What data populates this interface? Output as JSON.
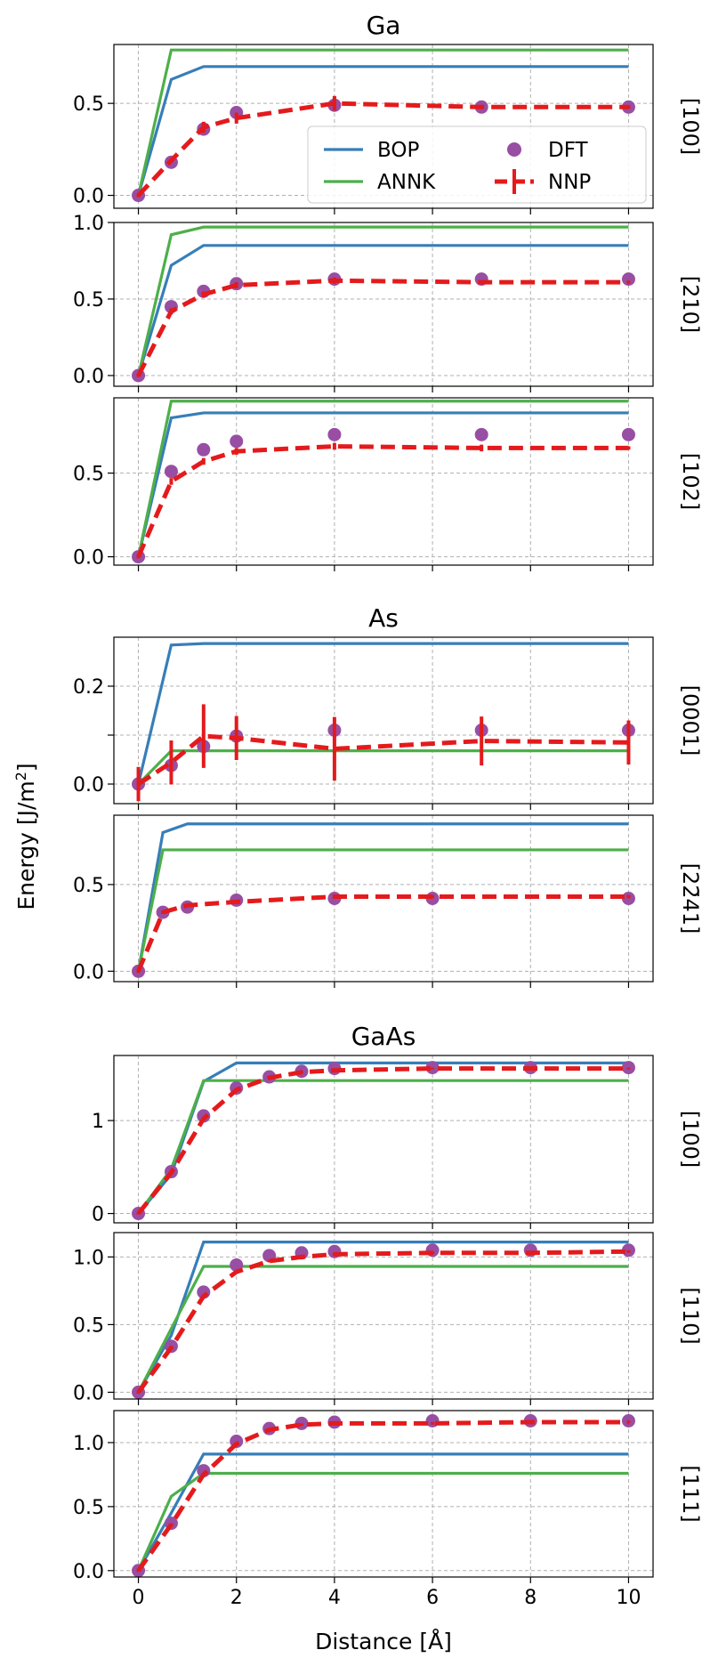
{
  "colors": {
    "BOP": "#377eb8",
    "ANNK": "#4daf4a",
    "DFT": "#984ea3",
    "NNP": "#e41a1c"
  },
  "ylabel": "Energy [J/m",
  "ylabel_sup": "2",
  "ylabel_end": "]",
  "xlabel": "Distance [Å]",
  "chart_data": [
    {
      "type": "line",
      "group_title": "Ga",
      "direction": "[100]",
      "xlim": [
        -0.5,
        10.5
      ],
      "ylim": [
        -0.07,
        0.82
      ],
      "yticks": [
        0.0,
        0.5
      ],
      "ytick_labels": [
        "0.0",
        "0.5"
      ],
      "legend": {
        "placement": "lower-right",
        "entries": [
          "BOP",
          "ANNK",
          "DFT",
          "NNP"
        ]
      },
      "series": [
        {
          "name": "BOP",
          "x": [
            0,
            0.67,
            1.33,
            10
          ],
          "y": [
            0.0,
            0.63,
            0.7,
            0.7
          ]
        },
        {
          "name": "ANNK",
          "x": [
            0,
            0.67,
            10
          ],
          "y": [
            0.0,
            0.79,
            0.79
          ]
        },
        {
          "name": "DFT",
          "x": [
            0,
            0.67,
            1.33,
            2,
            4,
            7,
            10
          ],
          "y": [
            0.0,
            0.18,
            0.36,
            0.45,
            0.49,
            0.48,
            0.48
          ]
        },
        {
          "name": "NNP",
          "x": [
            0,
            0.67,
            1.33,
            2,
            4,
            7,
            10
          ],
          "y": [
            0.0,
            0.19,
            0.37,
            0.42,
            0.5,
            0.48,
            0.48
          ],
          "err": [
            0.01,
            0.01,
            0.03,
            0.03,
            0.04,
            0.01,
            0.01
          ]
        }
      ]
    },
    {
      "type": "line",
      "group_title": "",
      "direction": "[210]",
      "xlim": [
        -0.5,
        10.5
      ],
      "ylim": [
        -0.07,
        1.0
      ],
      "yticks": [
        0.0,
        0.5,
        1.0
      ],
      "ytick_labels": [
        "0.0",
        "0.5",
        "1.0"
      ],
      "series": [
        {
          "name": "BOP",
          "x": [
            0,
            0.67,
            1.33,
            10
          ],
          "y": [
            0.0,
            0.72,
            0.85,
            0.85
          ]
        },
        {
          "name": "ANNK",
          "x": [
            0,
            0.67,
            1.33,
            10
          ],
          "y": [
            0.0,
            0.92,
            0.97,
            0.97
          ]
        },
        {
          "name": "DFT",
          "x": [
            0,
            0.67,
            1.33,
            2,
            4,
            7,
            10
          ],
          "y": [
            0.0,
            0.45,
            0.55,
            0.6,
            0.63,
            0.63,
            0.63
          ]
        },
        {
          "name": "NNP",
          "x": [
            0,
            0.67,
            1.33,
            2,
            4,
            7,
            10
          ],
          "y": [
            0.0,
            0.42,
            0.53,
            0.59,
            0.62,
            0.61,
            0.61
          ],
          "err": [
            0.01,
            0.02,
            0.02,
            0.02,
            0.02,
            0.01,
            0.01
          ]
        }
      ]
    },
    {
      "type": "line",
      "group_title": "",
      "direction": "[102]",
      "xlim": [
        -0.5,
        10.5
      ],
      "ylim": [
        -0.05,
        0.95
      ],
      "yticks": [
        0.0,
        0.5
      ],
      "ytick_labels": [
        "0.0",
        "0.5"
      ],
      "series": [
        {
          "name": "BOP",
          "x": [
            0,
            0.67,
            1.33,
            10
          ],
          "y": [
            0.0,
            0.83,
            0.86,
            0.86
          ]
        },
        {
          "name": "ANNK",
          "x": [
            0,
            0.67,
            10
          ],
          "y": [
            0.0,
            0.93,
            0.93
          ]
        },
        {
          "name": "DFT",
          "x": [
            0,
            0.67,
            1.33,
            2,
            4,
            7,
            10
          ],
          "y": [
            0.0,
            0.51,
            0.64,
            0.69,
            0.73,
            0.73,
            0.73
          ]
        },
        {
          "name": "NNP",
          "x": [
            0,
            0.67,
            1.33,
            2,
            4,
            7,
            10
          ],
          "y": [
            0.0,
            0.45,
            0.57,
            0.63,
            0.66,
            0.65,
            0.65
          ],
          "err": [
            0.01,
            0.02,
            0.02,
            0.02,
            0.02,
            0.02,
            0.01
          ]
        }
      ]
    },
    {
      "type": "line",
      "group_title": "As",
      "direction": "[0001]",
      "xlim": [
        -0.5,
        10.5
      ],
      "ylim": [
        -0.04,
        0.3
      ],
      "yticks": [
        0.0,
        0.1,
        0.2
      ],
      "ytick_labels": [
        "0.0",
        "",
        "0.2"
      ],
      "series": [
        {
          "name": "BOP",
          "x": [
            0,
            0.67,
            1.33,
            10
          ],
          "y": [
            0.0,
            0.284,
            0.287,
            0.287
          ]
        },
        {
          "name": "ANNK",
          "x": [
            0,
            0.67,
            10
          ],
          "y": [
            0.0,
            0.068,
            0.068
          ]
        },
        {
          "name": "DFT",
          "x": [
            0,
            0.67,
            1.33,
            2,
            4,
            7,
            10
          ],
          "y": [
            0.0,
            0.038,
            0.077,
            0.098,
            0.11,
            0.11,
            0.11
          ]
        },
        {
          "name": "NNP",
          "x": [
            0,
            0.67,
            1.33,
            2,
            4,
            7,
            10
          ],
          "y": [
            0.0,
            0.044,
            0.098,
            0.094,
            0.072,
            0.088,
            0.085
          ],
          "err": [
            0.035,
            0.045,
            0.065,
            0.045,
            0.065,
            0.05,
            0.045
          ]
        }
      ]
    },
    {
      "type": "line",
      "group_title": "",
      "direction": "[22̄41]",
      "xlim": [
        -0.5,
        10.5
      ],
      "ylim": [
        -0.06,
        0.9
      ],
      "yticks": [
        0.0,
        0.5
      ],
      "ytick_labels": [
        "0.0",
        "0.5"
      ],
      "series": [
        {
          "name": "BOP",
          "x": [
            0,
            0.5,
            1,
            10
          ],
          "y": [
            0.0,
            0.8,
            0.85,
            0.85
          ]
        },
        {
          "name": "ANNK",
          "x": [
            0,
            0.5,
            10
          ],
          "y": [
            0.0,
            0.7,
            0.7
          ]
        },
        {
          "name": "DFT",
          "x": [
            0,
            0.5,
            1,
            2,
            4,
            6,
            10
          ],
          "y": [
            0.0,
            0.34,
            0.37,
            0.41,
            0.42,
            0.42,
            0.42
          ]
        },
        {
          "name": "NNP",
          "x": [
            0,
            0.5,
            1,
            2,
            4,
            6,
            10
          ],
          "y": [
            0.0,
            0.34,
            0.38,
            0.4,
            0.43,
            0.43,
            0.43
          ],
          "err": [
            0.01,
            0.01,
            0.01,
            0.01,
            0.01,
            0.01,
            0.01
          ]
        }
      ]
    },
    {
      "type": "line",
      "group_title": "GaAs",
      "direction": "[100]",
      "xlim": [
        -0.5,
        10.5
      ],
      "ylim": [
        -0.1,
        1.7
      ],
      "yticks": [
        0,
        1
      ],
      "ytick_labels": [
        "0",
        "1"
      ],
      "series": [
        {
          "name": "BOP",
          "x": [
            0,
            0.67,
            1.33,
            2,
            10
          ],
          "y": [
            0.0,
            0.42,
            1.42,
            1.62,
            1.62
          ]
        },
        {
          "name": "ANNK",
          "x": [
            0,
            0.67,
            1.33,
            10
          ],
          "y": [
            0.0,
            0.48,
            1.43,
            1.43
          ]
        },
        {
          "name": "DFT",
          "x": [
            0,
            0.67,
            1.33,
            2,
            2.67,
            3.33,
            4,
            6,
            8,
            10
          ],
          "y": [
            0.0,
            0.45,
            1.05,
            1.35,
            1.47,
            1.53,
            1.56,
            1.57,
            1.57,
            1.57
          ]
        },
        {
          "name": "NNP",
          "x": [
            0,
            0.67,
            1.33,
            2,
            2.67,
            3.33,
            4,
            6,
            8,
            10
          ],
          "y": [
            0.0,
            0.44,
            1.02,
            1.33,
            1.46,
            1.52,
            1.54,
            1.56,
            1.56,
            1.56
          ],
          "err": [
            0.01,
            0.01,
            0.01,
            0.01,
            0.01,
            0.01,
            0.01,
            0.01,
            0.01,
            0.01
          ]
        }
      ]
    },
    {
      "type": "line",
      "group_title": "",
      "direction": "[110]",
      "xlim": [
        -0.5,
        10.5
      ],
      "ylim": [
        -0.05,
        1.18
      ],
      "yticks": [
        0.0,
        0.5,
        1.0
      ],
      "ytick_labels": [
        "0.0",
        "0.5",
        "1.0"
      ],
      "series": [
        {
          "name": "BOP",
          "x": [
            0,
            0.67,
            1.33,
            10
          ],
          "y": [
            0.0,
            0.42,
            1.11,
            1.11
          ]
        },
        {
          "name": "ANNK",
          "x": [
            0,
            0.67,
            1.33,
            10
          ],
          "y": [
            0.0,
            0.47,
            0.93,
            0.93
          ]
        },
        {
          "name": "DFT",
          "x": [
            0,
            0.67,
            1.33,
            2,
            2.67,
            3.33,
            4,
            6,
            8,
            10
          ],
          "y": [
            0.0,
            0.34,
            0.74,
            0.94,
            1.01,
            1.03,
            1.04,
            1.05,
            1.05,
            1.05
          ]
        },
        {
          "name": "NNP",
          "x": [
            0,
            0.67,
            1.33,
            2,
            2.67,
            3.33,
            4,
            6,
            8,
            10
          ],
          "y": [
            0.0,
            0.33,
            0.71,
            0.89,
            0.97,
            1.0,
            1.02,
            1.03,
            1.03,
            1.04
          ],
          "err": [
            0.01,
            0.01,
            0.01,
            0.01,
            0.01,
            0.01,
            0.01,
            0.01,
            0.01,
            0.01
          ]
        }
      ]
    },
    {
      "type": "line",
      "group_title": "",
      "direction": "[111]",
      "xlim": [
        -0.5,
        10.5
      ],
      "ylim": [
        -0.05,
        1.25
      ],
      "yticks": [
        0.0,
        0.5,
        1.0
      ],
      "ytick_labels": [
        "0.0",
        "0.5",
        "1.0"
      ],
      "series": [
        {
          "name": "BOP",
          "x": [
            0,
            0.67,
            1.33,
            10
          ],
          "y": [
            0.0,
            0.45,
            0.91,
            0.91
          ]
        },
        {
          "name": "ANNK",
          "x": [
            0,
            0.67,
            1.33,
            10
          ],
          "y": [
            0.0,
            0.58,
            0.76,
            0.76
          ]
        },
        {
          "name": "DFT",
          "x": [
            0,
            0.67,
            1.33,
            2,
            2.67,
            3.33,
            4,
            6,
            8,
            10
          ],
          "y": [
            0.0,
            0.37,
            0.78,
            1.01,
            1.11,
            1.15,
            1.16,
            1.17,
            1.17,
            1.17
          ]
        },
        {
          "name": "NNP",
          "x": [
            0,
            0.67,
            1.33,
            2,
            2.67,
            3.33,
            4,
            6,
            8,
            10
          ],
          "y": [
            0.0,
            0.36,
            0.75,
            0.99,
            1.1,
            1.14,
            1.15,
            1.15,
            1.16,
            1.16
          ],
          "err": [
            0.01,
            0.01,
            0.01,
            0.01,
            0.01,
            0.01,
            0.01,
            0.01,
            0.01,
            0.01
          ]
        }
      ]
    }
  ],
  "xaxis": {
    "ticks": [
      0,
      2,
      4,
      6,
      8,
      10
    ],
    "tick_labels": [
      "0",
      "2",
      "4",
      "6",
      "8",
      "10"
    ]
  }
}
